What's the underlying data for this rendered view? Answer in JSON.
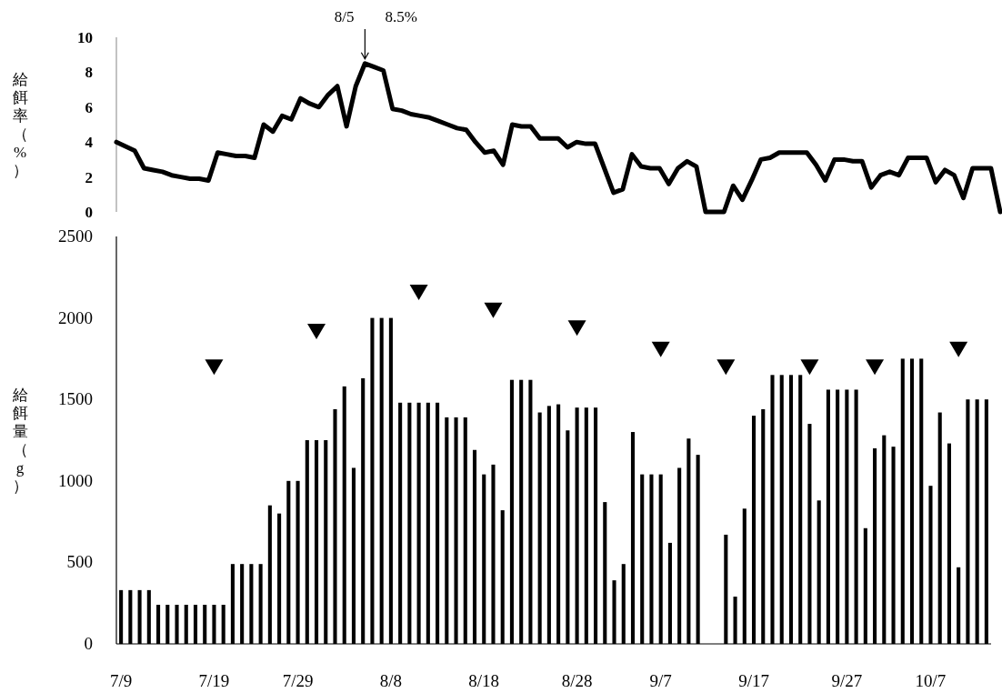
{
  "chart_data": [
    {
      "type": "line",
      "ylabel": "給餌率（%）",
      "color": "#000000",
      "ylim": [
        0,
        10
      ],
      "yticks": [
        0,
        2,
        4,
        6,
        8,
        10
      ],
      "tick_labels": "y",
      "categories": [
        null,
        null,
        null,
        null,
        null,
        null,
        null,
        null,
        null,
        null,
        null,
        null,
        null,
        null,
        null,
        null,
        null,
        null,
        null,
        null,
        null,
        null,
        null,
        null,
        null,
        null,
        null,
        null,
        null,
        null,
        null,
        null,
        null,
        null,
        null,
        null,
        null,
        null,
        null,
        null,
        null,
        null,
        null,
        null,
        null,
        null,
        null,
        null,
        null,
        null,
        null,
        null,
        null,
        null,
        null,
        null,
        null,
        null,
        null,
        null,
        null,
        null,
        null,
        null,
        null,
        null,
        null,
        null,
        null,
        null,
        null,
        null,
        null,
        null,
        null,
        null,
        null,
        null,
        null,
        null,
        null,
        null,
        null,
        null,
        null,
        null,
        null,
        null,
        null,
        null,
        null,
        null,
        null,
        null,
        null,
        null,
        null
      ],
      "values": [
        4.0,
        3.75,
        3.5,
        2.5,
        2.4,
        2.3,
        2.1,
        2.0,
        1.9,
        1.9,
        1.8,
        3.4,
        3.3,
        3.2,
        3.2,
        3.1,
        5.0,
        4.6,
        5.5,
        5.3,
        6.5,
        6.2,
        6.0,
        6.7,
        7.2,
        4.9,
        7.2,
        8.5,
        8.3,
        8.1,
        5.9,
        5.8,
        5.6,
        5.5,
        5.4,
        5.2,
        5.0,
        4.8,
        4.7,
        4.0,
        3.4,
        3.5,
        2.7,
        5.0,
        4.9,
        4.9,
        4.2,
        4.2,
        4.2,
        3.7,
        4.0,
        3.9,
        3.9,
        2.5,
        1.1,
        1.3,
        3.3,
        2.6,
        2.5,
        2.5,
        1.6,
        2.5,
        2.9,
        2.6,
        0,
        0,
        0,
        1.5,
        0.7,
        1.8,
        3.0,
        3.1,
        3.4,
        3.4,
        3.4,
        3.4,
        2.7,
        1.8,
        3.0,
        3.0,
        2.9,
        2.9,
        1.4,
        2.1,
        2.3,
        2.1,
        3.1,
        3.1,
        3.1,
        1.7,
        2.4,
        2.1,
        0.8,
        2.5,
        2.5,
        2.5,
        0
      ],
      "annotations": [
        {
          "text": "8/5　　8.5%",
          "y": 8.5
        }
      ]
    },
    {
      "type": "bar",
      "ylabel": "給餌量（g）",
      "ylim": [
        0,
        2500
      ],
      "yticks": [
        0,
        500,
        1000,
        1500,
        2000,
        2500
      ],
      "categories": [
        "7/9",
        null,
        null,
        null,
        null,
        null,
        null,
        null,
        null,
        null,
        "7/19",
        null,
        null,
        null,
        null,
        null,
        null,
        null,
        null,
        "7/29",
        null,
        null,
        null,
        null,
        null,
        null,
        null,
        null,
        null,
        "8/8",
        null,
        null,
        null,
        null,
        null,
        null,
        null,
        null,
        null,
        "8/18",
        null,
        null,
        null,
        null,
        null,
        null,
        null,
        null,
        null,
        "8/28",
        null,
        null,
        null,
        null,
        null,
        null,
        null,
        null,
        "9/7",
        null,
        null,
        null,
        null,
        null,
        null,
        null,
        null,
        null,
        "9/17",
        null,
        null,
        null,
        null,
        null,
        null,
        null,
        null,
        null,
        "9/27",
        null,
        null,
        null,
        null,
        null,
        null,
        null,
        null,
        "10/7",
        null,
        null,
        null,
        null,
        null,
        null
      ],
      "series": [
        {
          "color": "#000000",
          "values": [
            330,
            330,
            330,
            330,
            240,
            240,
            240,
            240,
            240,
            240,
            240,
            240,
            490,
            490,
            490,
            490,
            850,
            800,
            1000,
            1000,
            1250,
            1250,
            1250,
            1440,
            1580,
            1080,
            1630,
            2000,
            2000,
            2000,
            1480,
            1480,
            1480,
            1480,
            1480,
            1390,
            1390,
            1390,
            1190,
            1040,
            1100,
            820,
            1620,
            1620,
            1620,
            1420,
            1460,
            1470,
            1310,
            1450,
            1450,
            1450,
            870,
            390,
            490,
            1300,
            1040,
            1040,
            1040,
            620,
            1080,
            1260,
            1160,
            0,
            0,
            670,
            290,
            830,
            1400,
            1440,
            1650,
            1650,
            1650,
            1650,
            1350,
            880,
            1560,
            1560,
            1560,
            1560,
            710,
            1200,
            1280,
            1210,
            1750,
            1750,
            1750,
            970,
            1420,
            1230,
            470,
            1500,
            1500,
            1500
          ]
        },
        {
          "type": "scatter",
          "color": "#000000",
          "marker": "triangle",
          "values": [
            null,
            null,
            null,
            null,
            null,
            null,
            null,
            null,
            null,
            null,
            1700,
            null,
            null,
            null,
            null,
            null,
            null,
            null,
            null,
            null,
            null,
            1920,
            null,
            null,
            null,
            null,
            null,
            null,
            null,
            null,
            null,
            null,
            2160,
            null,
            null,
            null,
            null,
            null,
            null,
            null,
            2050,
            null,
            null,
            null,
            null,
            null,
            null,
            null,
            null,
            1940,
            null,
            null,
            null,
            null,
            null,
            null,
            null,
            null,
            1810,
            null,
            null,
            null,
            null,
            null,
            null,
            1700,
            null,
            null,
            null,
            null,
            null,
            null,
            null,
            null,
            1700,
            null,
            null,
            null,
            null,
            null,
            null,
            1700,
            null,
            null,
            null,
            null,
            null,
            null,
            null,
            null,
            1810,
            null,
            null,
            null
          ]
        }
      ]
    }
  ]
}
